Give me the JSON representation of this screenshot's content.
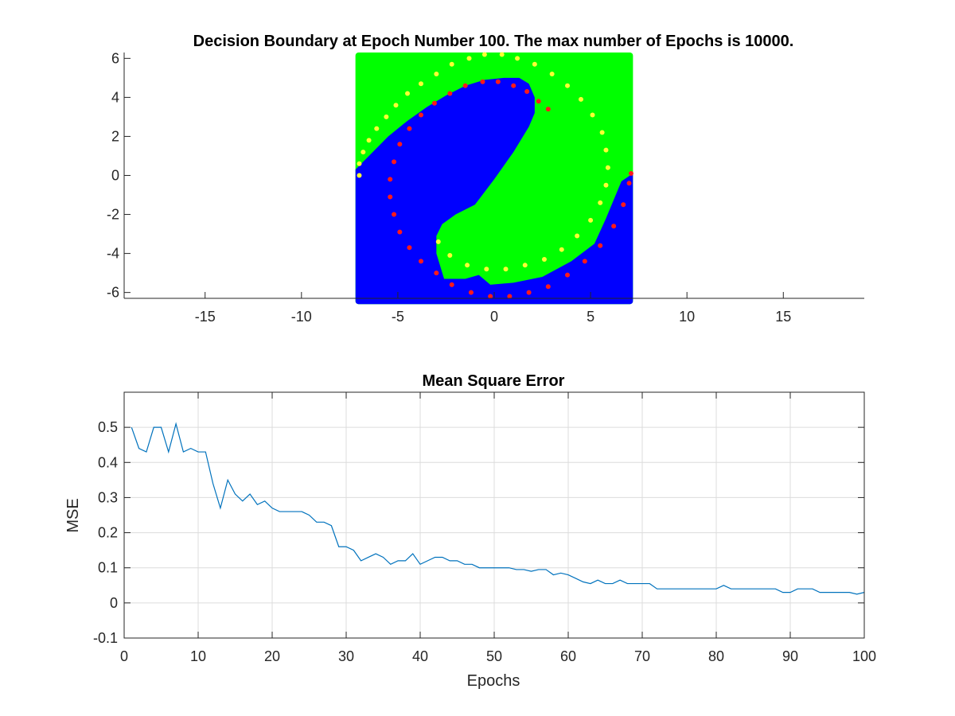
{
  "chart_data": [
    {
      "type": "scatter",
      "title": "Decision Boundary at Epoch Number 100. The max number of Epochs is 10000.",
      "xlim": [
        -19.2,
        19.2
      ],
      "ylim": [
        -6.3,
        6.3
      ],
      "xticks": [
        -15,
        -10,
        -5,
        0,
        5,
        10,
        15
      ],
      "yticks": [
        -6,
        -4,
        -2,
        0,
        2,
        4,
        6
      ],
      "grid": false,
      "region": {
        "x_range": [
          -7.2,
          7.2
        ],
        "y_range": [
          -6.6,
          6.3
        ],
        "background_class_color": "#0000ff",
        "other_class_color": "#00ff00",
        "boundary_green_upper_left": [
          [
            -7.2,
            0.3
          ],
          [
            -6.5,
            1.0
          ],
          [
            -5.5,
            2.0
          ],
          [
            -4.5,
            2.8
          ],
          [
            -3.5,
            3.5
          ],
          [
            -2.5,
            4.1
          ],
          [
            -1.5,
            4.6
          ],
          [
            -0.5,
            4.9
          ],
          [
            0.5,
            5.0
          ],
          [
            1.3,
            5.0
          ],
          [
            1.8,
            4.7
          ],
          [
            2.1,
            4.0
          ],
          [
            2.1,
            3.2
          ],
          [
            1.8,
            2.5
          ],
          [
            1.0,
            1.2
          ],
          [
            0.0,
            -0.2
          ],
          [
            -1.0,
            -1.5
          ],
          [
            -2.0,
            -2.0
          ],
          [
            -2.7,
            -2.5
          ],
          [
            -3.0,
            -3.1
          ],
          [
            -3.0,
            -4.0
          ],
          [
            -2.6,
            -5.3
          ],
          [
            -1.5,
            -5.3
          ],
          [
            -0.8,
            -5.1
          ],
          [
            -0.2,
            -5.6
          ],
          [
            1.0,
            -5.5
          ],
          [
            2.5,
            -5.2
          ],
          [
            4.0,
            -4.4
          ],
          [
            5.2,
            -3.5
          ],
          [
            5.8,
            -2.2
          ],
          [
            6.6,
            -0.3
          ],
          [
            7.2,
            0.1
          ]
        ]
      },
      "series": [
        {
          "color": "#ffff33",
          "points": [
            [
              -7.0,
              0.0
            ],
            [
              -7.0,
              0.6
            ],
            [
              -6.8,
              1.2
            ],
            [
              -6.5,
              1.8
            ],
            [
              -6.1,
              2.4
            ],
            [
              -5.6,
              3.0
            ],
            [
              -5.1,
              3.6
            ],
            [
              -4.5,
              4.2
            ],
            [
              -3.8,
              4.7
            ],
            [
              -3.0,
              5.2
            ],
            [
              -2.2,
              5.7
            ],
            [
              -1.3,
              6.0
            ],
            [
              -0.5,
              6.2
            ],
            [
              0.4,
              6.2
            ],
            [
              1.2,
              6.0
            ],
            [
              2.1,
              5.7
            ],
            [
              3.0,
              5.2
            ],
            [
              3.8,
              4.6
            ],
            [
              4.5,
              3.9
            ],
            [
              5.1,
              3.1
            ],
            [
              5.6,
              2.2
            ],
            [
              5.8,
              1.3
            ],
            [
              5.9,
              0.4
            ],
            [
              5.8,
              -0.5
            ],
            [
              5.5,
              -1.4
            ],
            [
              5.0,
              -2.3
            ],
            [
              4.3,
              -3.1
            ],
            [
              3.5,
              -3.8
            ],
            [
              2.6,
              -4.3
            ],
            [
              1.6,
              -4.6
            ],
            [
              0.6,
              -4.8
            ],
            [
              -0.4,
              -4.8
            ],
            [
              -1.4,
              -4.6
            ],
            [
              -2.3,
              -4.1
            ],
            [
              -2.9,
              -3.4
            ]
          ]
        },
        {
          "color": "#ff1a1a",
          "points": [
            [
              2.8,
              3.4
            ],
            [
              2.3,
              3.8
            ],
            [
              1.7,
              4.3
            ],
            [
              1.0,
              4.6
            ],
            [
              0.2,
              4.8
            ],
            [
              -0.6,
              4.8
            ],
            [
              -1.5,
              4.6
            ],
            [
              -2.3,
              4.2
            ],
            [
              -3.1,
              3.7
            ],
            [
              -3.8,
              3.1
            ],
            [
              -4.4,
              2.4
            ],
            [
              -4.9,
              1.6
            ],
            [
              -5.2,
              0.7
            ],
            [
              -5.4,
              -0.2
            ],
            [
              -5.4,
              -1.1
            ],
            [
              -5.2,
              -2.0
            ],
            [
              -4.9,
              -2.9
            ],
            [
              -4.4,
              -3.7
            ],
            [
              -3.8,
              -4.4
            ],
            [
              -3.0,
              -5.0
            ],
            [
              -2.2,
              -5.6
            ],
            [
              -1.2,
              -6.0
            ],
            [
              -0.2,
              -6.2
            ],
            [
              0.8,
              -6.2
            ],
            [
              1.8,
              -6.0
            ],
            [
              2.8,
              -5.7
            ],
            [
              3.8,
              -5.1
            ],
            [
              4.7,
              -4.4
            ],
            [
              5.5,
              -3.6
            ],
            [
              6.2,
              -2.6
            ],
            [
              6.7,
              -1.5
            ],
            [
              7.0,
              -0.4
            ],
            [
              7.1,
              0.1
            ]
          ]
        }
      ]
    },
    {
      "type": "line",
      "title": "Mean Square Error",
      "xlabel": "Epochs",
      "ylabel": "MSE",
      "xlim": [
        0,
        100
      ],
      "ylim": [
        -0.1,
        0.6
      ],
      "xticks": [
        0,
        10,
        20,
        30,
        40,
        50,
        60,
        70,
        80,
        90,
        100
      ],
      "yticks": [
        -0.1,
        0,
        0.1,
        0.2,
        0.3,
        0.4,
        0.5
      ],
      "ytick_labels": [
        "-0.1",
        "0",
        "0.1",
        "0.2",
        "0.3",
        "0.4",
        "0.5"
      ],
      "grid": true,
      "line_color": "#0072bd",
      "x": [
        1,
        2,
        3,
        4,
        5,
        6,
        7,
        8,
        9,
        10,
        11,
        12,
        13,
        14,
        15,
        16,
        17,
        18,
        19,
        20,
        21,
        22,
        23,
        24,
        25,
        26,
        27,
        28,
        29,
        30,
        31,
        32,
        33,
        34,
        35,
        36,
        37,
        38,
        39,
        40,
        41,
        42,
        43,
        44,
        45,
        46,
        47,
        48,
        49,
        50,
        51,
        52,
        53,
        54,
        55,
        56,
        57,
        58,
        59,
        60,
        61,
        62,
        63,
        64,
        65,
        66,
        67,
        68,
        69,
        70,
        71,
        72,
        73,
        74,
        75,
        76,
        77,
        78,
        79,
        80,
        81,
        82,
        83,
        84,
        85,
        86,
        87,
        88,
        89,
        90,
        91,
        92,
        93,
        94,
        95,
        96,
        97,
        98,
        99,
        100
      ],
      "values": [
        0.5,
        0.44,
        0.43,
        0.5,
        0.5,
        0.43,
        0.51,
        0.43,
        0.44,
        0.43,
        0.43,
        0.34,
        0.27,
        0.35,
        0.31,
        0.29,
        0.31,
        0.28,
        0.29,
        0.27,
        0.26,
        0.26,
        0.26,
        0.26,
        0.25,
        0.23,
        0.23,
        0.22,
        0.16,
        0.16,
        0.15,
        0.12,
        0.13,
        0.14,
        0.13,
        0.11,
        0.12,
        0.12,
        0.14,
        0.11,
        0.12,
        0.13,
        0.13,
        0.12,
        0.12,
        0.11,
        0.11,
        0.1,
        0.1,
        0.1,
        0.1,
        0.1,
        0.095,
        0.095,
        0.09,
        0.095,
        0.095,
        0.08,
        0.085,
        0.08,
        0.07,
        0.06,
        0.055,
        0.065,
        0.055,
        0.055,
        0.065,
        0.055,
        0.055,
        0.055,
        0.055,
        0.04,
        0.04,
        0.04,
        0.04,
        0.04,
        0.04,
        0.04,
        0.04,
        0.04,
        0.05,
        0.04,
        0.04,
        0.04,
        0.04,
        0.04,
        0.04,
        0.04,
        0.03,
        0.03,
        0.04,
        0.04,
        0.04,
        0.03,
        0.03,
        0.03,
        0.03,
        0.03,
        0.025,
        0.03
      ]
    }
  ]
}
